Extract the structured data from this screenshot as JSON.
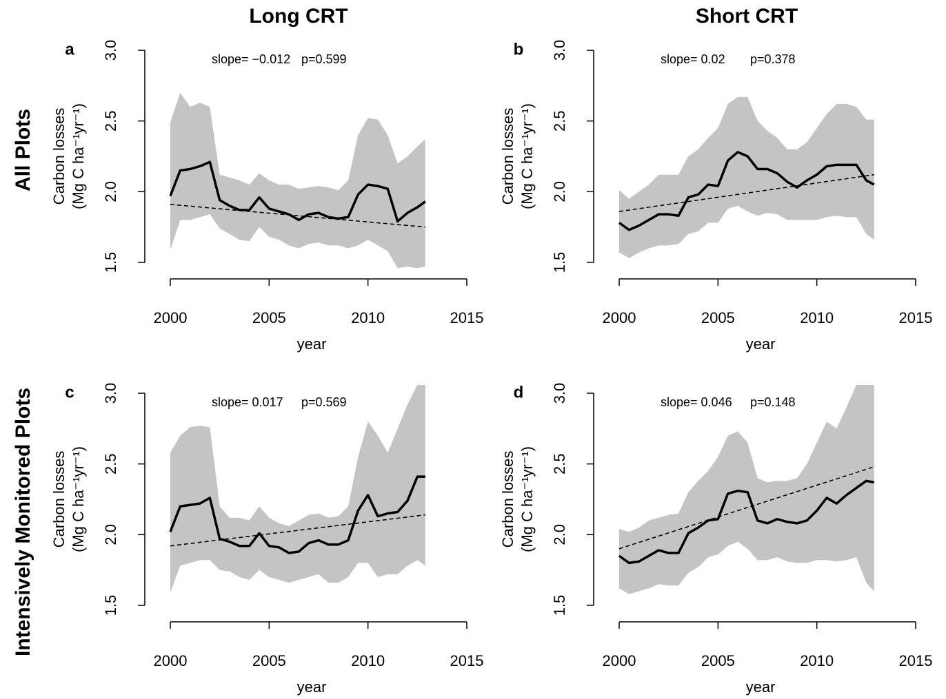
{
  "column_titles": [
    "Long CRT",
    "Short CRT"
  ],
  "row_titles": [
    "All Plots",
    "Intensively Monitored Plots"
  ],
  "chart_data": [
    {
      "type": "line",
      "label": "a",
      "slope": "slope= −0.012",
      "p": "p=0.599",
      "xlabel": "year",
      "ylabel": [
        "Carbon losses",
        "(Mg C ha⁻¹yr⁻¹)"
      ],
      "xlim": [
        2000,
        2015
      ],
      "xticks": [
        2000,
        2005,
        2010,
        2015
      ],
      "ylim": [
        1.5,
        3.0
      ],
      "yticks": [
        1.5,
        {
          "value": 2.0,
          "label": "2.0"
        },
        2.5,
        {
          "value": 3.0,
          "label": "3.0"
        }
      ],
      "x": [
        2000,
        2000.5,
        2001,
        2001.5,
        2002,
        2002.5,
        2003,
        2003.5,
        2004,
        2004.5,
        2005,
        2005.5,
        2006,
        2006.5,
        2007,
        2007.5,
        2008,
        2008.5,
        2009,
        2009.5,
        2010,
        2010.5,
        2011,
        2011.5,
        2012,
        2012.5,
        2012.9
      ],
      "series": [
        {
          "color": "#000000",
          "values": [
            1.97,
            2.15,
            2.16,
            2.18,
            2.21,
            1.94,
            1.9,
            1.87,
            1.87,
            1.96,
            1.88,
            1.86,
            1.84,
            1.8,
            1.84,
            1.85,
            1.82,
            1.81,
            1.82,
            1.98,
            2.05,
            2.04,
            2.02,
            1.79,
            1.85,
            1.89,
            1.93
          ]
        }
      ],
      "band": {
        "color": "#c4c4c4",
        "upper": [
          2.49,
          2.7,
          2.6,
          2.63,
          2.6,
          2.12,
          2.1,
          2.08,
          2.05,
          2.13,
          2.08,
          2.05,
          2.05,
          2.02,
          2.03,
          2.04,
          2.03,
          2.01,
          2.08,
          2.4,
          2.52,
          2.51,
          2.4,
          2.2,
          2.25,
          2.32,
          2.37
        ],
        "lower": [
          1.59,
          1.8,
          1.8,
          1.82,
          1.84,
          1.74,
          1.7,
          1.66,
          1.65,
          1.75,
          1.68,
          1.66,
          1.62,
          1.6,
          1.63,
          1.64,
          1.62,
          1.62,
          1.6,
          1.62,
          1.66,
          1.62,
          1.58,
          1.46,
          1.47,
          1.46,
          1.47
        ]
      },
      "trend": {
        "x": [
          2000,
          2012.9
        ],
        "values": [
          1.91,
          1.75
        ]
      }
    },
    {
      "type": "line",
      "label": "b",
      "slope": "slope= 0.02",
      "p": "p=0.378",
      "xlabel": "year",
      "ylabel": [
        "Carbon losses",
        "(Mg C ha⁻¹yr⁻¹)"
      ],
      "xlim": [
        2000,
        2015
      ],
      "xticks": [
        2000,
        2005,
        2010,
        2015
      ],
      "ylim": [
        1.5,
        3.0
      ],
      "yticks": [
        1.5,
        {
          "value": 2.0,
          "label": "2.0"
        },
        2.5,
        {
          "value": 3.0,
          "label": "3.0"
        }
      ],
      "x": [
        2000,
        2000.5,
        2001,
        2001.5,
        2002,
        2002.5,
        2003,
        2003.5,
        2004,
        2004.5,
        2005,
        2005.5,
        2006,
        2006.5,
        2007,
        2007.5,
        2008,
        2008.5,
        2009,
        2009.5,
        2010,
        2010.5,
        2011,
        2011.5,
        2012,
        2012.5,
        2012.9
      ],
      "series": [
        {
          "color": "#000000",
          "values": [
            1.78,
            1.73,
            1.76,
            1.8,
            1.84,
            1.84,
            1.83,
            1.96,
            1.98,
            2.05,
            2.04,
            2.22,
            2.28,
            2.25,
            2.16,
            2.16,
            2.13,
            2.07,
            2.03,
            2.08,
            2.12,
            2.18,
            2.19,
            2.19,
            2.19,
            2.08,
            2.05
          ]
        }
      ],
      "band": {
        "color": "#c4c4c4",
        "upper": [
          2.01,
          1.95,
          2.0,
          2.05,
          2.12,
          2.12,
          2.12,
          2.25,
          2.3,
          2.38,
          2.45,
          2.62,
          2.67,
          2.67,
          2.5,
          2.43,
          2.38,
          2.3,
          2.3,
          2.35,
          2.45,
          2.55,
          2.62,
          2.62,
          2.6,
          2.51,
          2.51
        ],
        "lower": [
          1.57,
          1.53,
          1.57,
          1.6,
          1.62,
          1.62,
          1.63,
          1.7,
          1.72,
          1.78,
          1.78,
          1.88,
          1.9,
          1.86,
          1.83,
          1.85,
          1.84,
          1.8,
          1.8,
          1.8,
          1.8,
          1.82,
          1.83,
          1.82,
          1.82,
          1.7,
          1.66
        ]
      },
      "trend": {
        "x": [
          2000,
          2012.9
        ],
        "values": [
          1.86,
          2.12
        ]
      }
    },
    {
      "type": "line",
      "label": "c",
      "slope": "slope= 0.017",
      "p": "p=0.569",
      "xlabel": "year",
      "ylabel": [
        "Carbon losses",
        "(Mg C ha⁻¹yr⁻¹)"
      ],
      "xlim": [
        2000,
        2015
      ],
      "xticks": [
        2000,
        2005,
        2010,
        2015
      ],
      "ylim": [
        1.5,
        3.0
      ],
      "yticks": [
        1.5,
        {
          "value": 2.0,
          "label": "2.0"
        },
        2.5,
        {
          "value": 3.0,
          "label": "3.0"
        }
      ],
      "x": [
        2000,
        2000.5,
        2001,
        2001.5,
        2002,
        2002.5,
        2003,
        2003.5,
        2004,
        2004.5,
        2005,
        2005.5,
        2006,
        2006.5,
        2007,
        2007.5,
        2008,
        2008.5,
        2009,
        2009.5,
        2010,
        2010.5,
        2011,
        2011.5,
        2012,
        2012.5,
        2012.9
      ],
      "series": [
        {
          "color": "#000000",
          "values": [
            2.02,
            2.2,
            2.21,
            2.22,
            2.26,
            1.97,
            1.95,
            1.92,
            1.92,
            2.01,
            1.92,
            1.91,
            1.87,
            1.88,
            1.94,
            1.96,
            1.93,
            1.93,
            1.96,
            2.17,
            2.28,
            2.13,
            2.15,
            2.16,
            2.24,
            2.41,
            2.41
          ]
        }
      ],
      "band": {
        "color": "#c4c4c4",
        "upper": [
          2.58,
          2.7,
          2.76,
          2.77,
          2.76,
          2.2,
          2.12,
          2.12,
          2.1,
          2.2,
          2.12,
          2.08,
          2.06,
          2.1,
          2.14,
          2.15,
          2.12,
          2.13,
          2.2,
          2.55,
          2.8,
          2.7,
          2.58,
          2.75,
          2.92,
          3.06,
          3.06
        ],
        "lower": [
          1.59,
          1.78,
          1.8,
          1.82,
          1.82,
          1.75,
          1.74,
          1.7,
          1.68,
          1.75,
          1.7,
          1.68,
          1.66,
          1.68,
          1.7,
          1.72,
          1.66,
          1.66,
          1.7,
          1.8,
          1.8,
          1.7,
          1.72,
          1.72,
          1.78,
          1.82,
          1.78
        ]
      },
      "trend": {
        "x": [
          2000,
          2012.9
        ],
        "values": [
          1.92,
          2.14
        ]
      }
    },
    {
      "type": "line",
      "label": "d",
      "slope": "slope= 0.046",
      "p": "p=0.148",
      "xlabel": "year",
      "ylabel": [
        "Carbon losses",
        "(Mg C ha⁻¹yr⁻¹)"
      ],
      "xlim": [
        2000,
        2015
      ],
      "xticks": [
        2000,
        2005,
        2010,
        2015
      ],
      "ylim": [
        1.5,
        3.0
      ],
      "yticks": [
        1.5,
        {
          "value": 2.0,
          "label": "2.0"
        },
        2.5,
        {
          "value": 3.0,
          "label": "3.0"
        }
      ],
      "x": [
        2000,
        2000.5,
        2001,
        2001.5,
        2002,
        2002.5,
        2003,
        2003.5,
        2004,
        2004.5,
        2005,
        2005.5,
        2006,
        2006.5,
        2007,
        2007.5,
        2008,
        2008.5,
        2009,
        2009.5,
        2010,
        2010.5,
        2011,
        2011.5,
        2012,
        2012.5,
        2012.9
      ],
      "series": [
        {
          "color": "#000000",
          "values": [
            1.85,
            1.8,
            1.81,
            1.85,
            1.89,
            1.87,
            1.87,
            2.01,
            2.05,
            2.1,
            2.11,
            2.29,
            2.31,
            2.3,
            2.1,
            2.08,
            2.11,
            2.09,
            2.08,
            2.1,
            2.17,
            2.26,
            2.22,
            2.28,
            2.33,
            2.38,
            2.37
          ]
        }
      ],
      "band": {
        "color": "#c4c4c4",
        "upper": [
          2.04,
          2.02,
          2.05,
          2.1,
          2.12,
          2.14,
          2.15,
          2.3,
          2.38,
          2.45,
          2.55,
          2.7,
          2.73,
          2.65,
          2.4,
          2.37,
          2.38,
          2.38,
          2.4,
          2.5,
          2.65,
          2.8,
          2.75,
          2.9,
          3.06,
          3.06,
          3.06
        ],
        "lower": [
          1.62,
          1.58,
          1.6,
          1.62,
          1.65,
          1.64,
          1.64,
          1.73,
          1.77,
          1.84,
          1.86,
          1.92,
          1.95,
          1.9,
          1.82,
          1.82,
          1.84,
          1.81,
          1.8,
          1.8,
          1.82,
          1.82,
          1.81,
          1.82,
          1.84,
          1.66,
          1.6
        ]
      },
      "trend": {
        "x": [
          2000,
          2012.9
        ],
        "values": [
          1.9,
          2.48
        ]
      }
    }
  ]
}
